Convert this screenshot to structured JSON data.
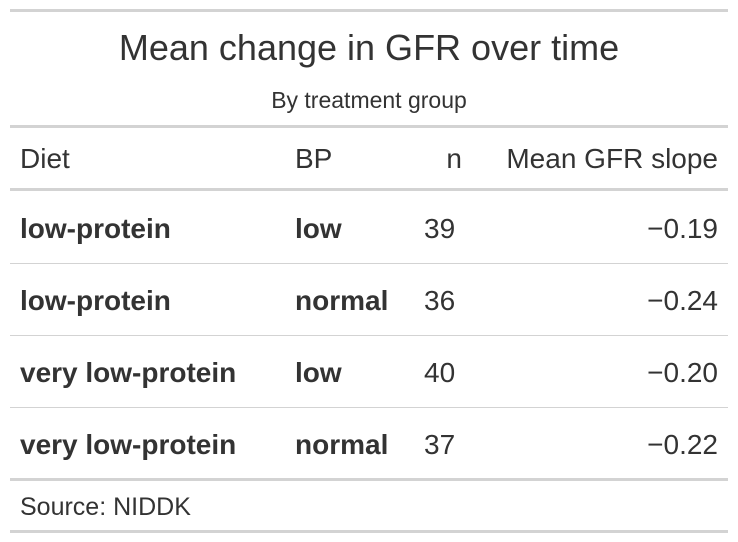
{
  "table": {
    "title": "Mean change in GFR over time",
    "subtitle": "By treatment group",
    "columns": [
      "Diet",
      "BP",
      "n",
      "Mean GFR slope"
    ],
    "rows": [
      [
        "low-protein",
        "low",
        "39",
        "−0.19"
      ],
      [
        "low-protein",
        "normal",
        "36",
        "−0.24"
      ],
      [
        "very low-protein",
        "low",
        "40",
        "−0.20"
      ],
      [
        "very low-protein",
        "normal",
        "37",
        "−0.22"
      ]
    ],
    "source": "Source: NIDDK"
  },
  "chart_data": {
    "type": "table",
    "title": "Mean change in GFR over time",
    "subtitle": "By treatment group",
    "columns": [
      "Diet",
      "BP",
      "n",
      "Mean GFR slope"
    ],
    "rows": [
      [
        "low-protein",
        "low",
        39,
        -0.19
      ],
      [
        "low-protein",
        "normal",
        36,
        -0.24
      ],
      [
        "very low-protein",
        "low",
        40,
        -0.2
      ],
      [
        "very low-protein",
        "normal",
        37,
        -0.22
      ]
    ],
    "caption": "Source: NIDDK"
  }
}
